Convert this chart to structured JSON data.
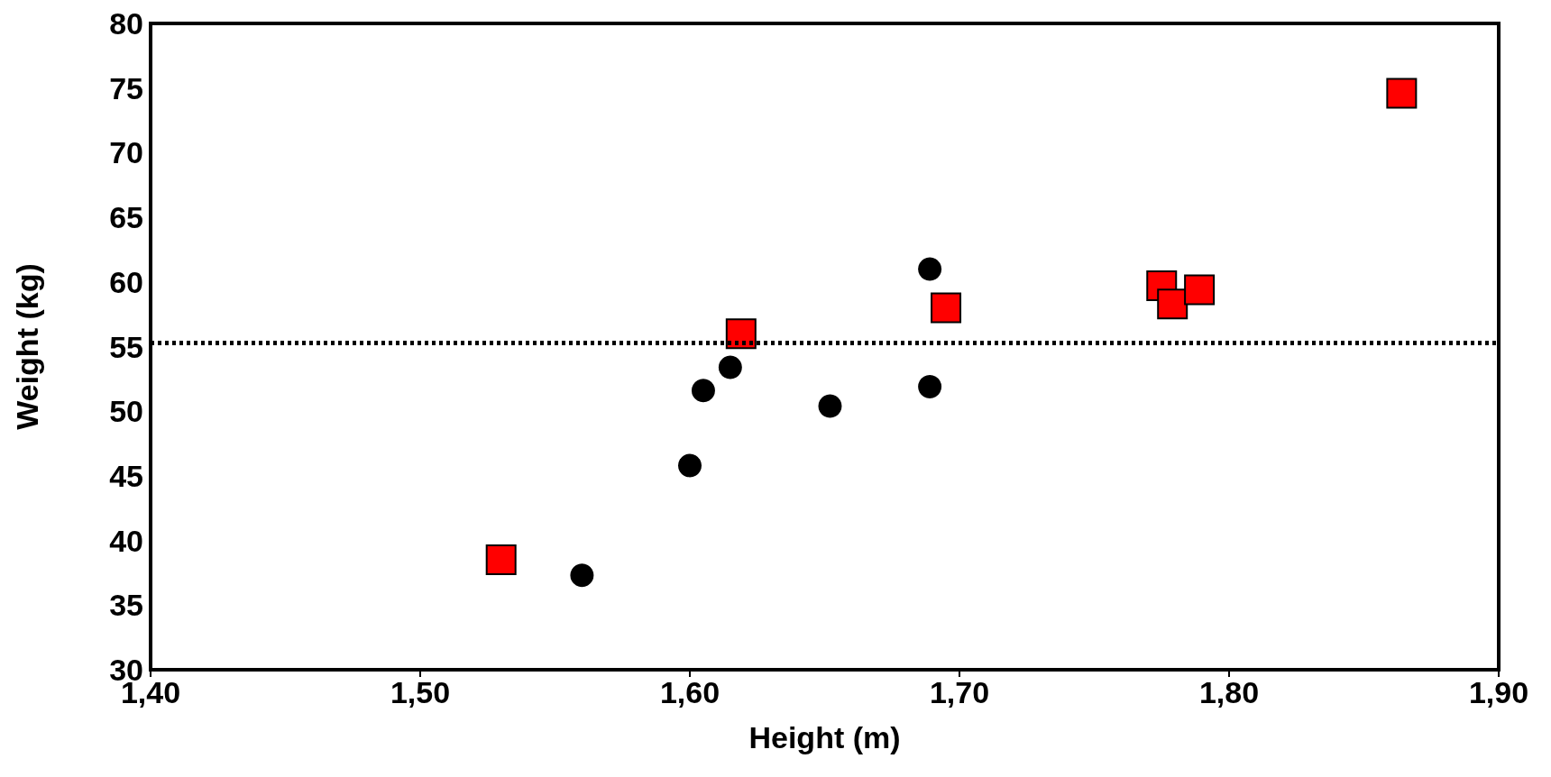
{
  "chart_data": {
    "type": "scatter",
    "xlabel": "Height (m)",
    "ylabel": "Weight (kg)",
    "xlim": [
      1.4,
      1.9
    ],
    "xticks": [
      {
        "value": 1.4,
        "label": "1,40"
      },
      {
        "value": 1.5,
        "label": "1,50"
      },
      {
        "value": 1.6,
        "label": "1,60"
      },
      {
        "value": 1.7,
        "label": "1,70"
      },
      {
        "value": 1.8,
        "label": "1,80"
      },
      {
        "value": 1.9,
        "label": "1,90"
      }
    ],
    "ylim": [
      30,
      80
    ],
    "yticks": [
      30,
      35,
      40,
      45,
      50,
      55,
      60,
      65,
      70,
      75,
      80
    ],
    "grid": false,
    "series": [
      {
        "color": "#000000",
        "marker": "circle",
        "x": [
          1.56,
          1.6,
          1.605,
          1.615,
          1.652,
          1.689,
          1.689
        ],
        "values": [
          37.3,
          45.8,
          51.6,
          53.4,
          50.4,
          61.0,
          51.9
        ]
      },
      {
        "color": "#ff0000",
        "marker": "square",
        "x": [
          1.53,
          1.619,
          1.695,
          1.775,
          1.779,
          1.789,
          1.864
        ],
        "values": [
          38.5,
          56.0,
          58.0,
          59.7,
          58.3,
          59.4,
          74.6
        ]
      }
    ],
    "ref_lines": [
      {
        "axis": "y",
        "value": 55.3,
        "label": null,
        "color": "#000000",
        "line_style": "dotted"
      }
    ]
  }
}
